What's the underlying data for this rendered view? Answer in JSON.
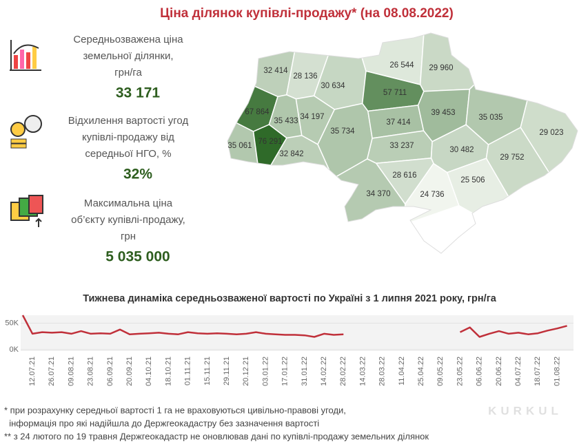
{
  "title": "Ціна ділянок купівлі-продажу* (на 08.08.2022)",
  "stats": [
    {
      "label_lines": [
        "Середньозважена ціна",
        "земельної ділянки,",
        "грн/га"
      ],
      "value": "33 171"
    },
    {
      "label_lines": [
        "Відхилення вартості угод",
        "купівлі-продажу від",
        "середньої НГО, %"
      ],
      "value": "32%"
    },
    {
      "label_lines": [
        "Максимальна ціна",
        "об’єкту купівлі-продажу,",
        "грн"
      ],
      "value": "5 035 000"
    }
  ],
  "chart_data": [
    {
      "type": "choropleth",
      "values": [
        32414,
        28136,
        30634,
        57711,
        26544,
        29960,
        67864,
        35433,
        34197,
        35734,
        37414,
        39453,
        35035,
        29023,
        35061,
        76291,
        32842,
        33237,
        30482,
        29752,
        28616,
        25506,
        34370,
        24736
      ],
      "value_labels": [
        "32 414",
        "28 136",
        "30 634",
        "57 711",
        "26 544",
        "29 960",
        "67 864",
        "35 433",
        "34 197",
        "35 734",
        "37 414",
        "39 453",
        "35 035",
        "29 023",
        "35 061",
        "76 291",
        "32 842",
        "33 237",
        "30 482",
        "29 752",
        "28 616",
        "25 506",
        "34 370",
        "24 736"
      ],
      "color_range": [
        "#f1f5ee",
        "#2f6a29"
      ]
    },
    {
      "type": "line",
      "title": "Тижнева динаміка середньозваженої вартості по Україні з 1 липня 2021 року, грн/га",
      "categories": [
        null,
        "12.07.21",
        null,
        "26.07.21",
        null,
        "09.08.21",
        null,
        "23.08.21",
        null,
        "06.09.21",
        null,
        "20.09.21",
        null,
        "04.10.21",
        null,
        "18.10.21",
        null,
        "01.11.21",
        null,
        "15.11.21",
        null,
        "29.11.21",
        null,
        "20.12.21",
        null,
        "03.01.22",
        null,
        "17.01.22",
        null,
        "31.01.22",
        null,
        "14.02.22",
        null,
        "28.02.22",
        null,
        "14.03.22",
        null,
        "28.03.22",
        null,
        "11.04.22",
        null,
        "25.04.22",
        null,
        "09.05.22",
        null,
        "23.05.22",
        null,
        "06.06.22",
        null,
        "20.06.22",
        null,
        "04.07.22",
        null,
        "18.07.22",
        null,
        "01.08.22",
        null
      ],
      "series": [
        {
          "color": "#c0303a",
          "values": [
            65000,
            30000,
            33000,
            32000,
            33000,
            30000,
            35000,
            30000,
            31000,
            30000,
            38000,
            29000,
            30000,
            31000,
            32000,
            30000,
            29000,
            33000,
            31000,
            30000,
            31000,
            30000,
            29000,
            30000,
            33000,
            30000,
            29000,
            28000,
            28000,
            27000,
            24000,
            30000,
            28000,
            29000,
            null,
            null,
            null,
            null,
            null,
            null,
            null,
            null,
            null,
            null,
            null,
            33000,
            42000,
            24000,
            30000,
            35000,
            30000,
            32000,
            29000,
            31000,
            36000,
            40000,
            45000
          ]
        }
      ],
      "ylim": [
        0,
        65000
      ],
      "yticks": [
        {
          "value": 0,
          "label": "0K"
        },
        {
          "value": 50000,
          "label": "50K"
        }
      ]
    }
  ],
  "footnotes": [
    "* при розрахунку середньої вартості 1 га не враховуються цивільно-правові угоди,",
    "  інформація про які надійшла до Держгеокадастру без зазначення вартості",
    "** з 24 лютого по 19 травня Держгеокадастр не оновлював дані по купівлі-продажу земельних ділянок"
  ],
  "watermark": "KURKUL"
}
